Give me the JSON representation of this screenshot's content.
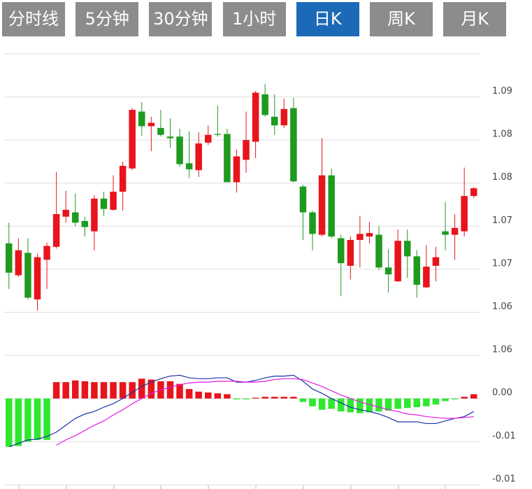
{
  "tabs": [
    "分时线",
    "5分钟",
    "30分钟",
    "1小时",
    "日K",
    "周K",
    "月K"
  ],
  "active_tab": 4,
  "chart_data": [
    {
      "type": "candlestick",
      "open": [
        1.0705,
        1.0668,
        1.0694,
        1.064,
        1.0686,
        1.0701,
        1.0736,
        1.0741,
        1.0731,
        1.0719,
        1.0757,
        1.0744,
        1.0765,
        1.0792,
        1.0858,
        1.0841,
        1.0839,
        1.0829,
        1.0829,
        1.0798,
        1.079,
        1.0822,
        1.0832,
        1.0832,
        1.0776,
        1.0802,
        1.0823,
        1.0878,
        1.0852,
        1.0842,
        1.0862,
        1.0771,
        1.0741,
        1.0715,
        1.0784,
        1.0711,
        1.0679,
        1.0709,
        1.0713,
        1.0715,
        1.0677,
        1.0661,
        1.0708,
        1.069,
        1.0654,
        1.0679,
        1.0719,
        1.0715,
        1.0719,
        1.076
      ],
      "high": [
        1.0729,
        1.0711,
        1.0711,
        1.0693,
        1.0706,
        1.0788,
        1.0766,
        1.0763,
        1.0736,
        1.0761,
        1.0765,
        1.0784,
        1.08,
        1.0862,
        1.0869,
        1.0852,
        1.086,
        1.085,
        1.0838,
        1.0835,
        1.0834,
        1.0842,
        1.0865,
        1.0838,
        1.0814,
        1.0858,
        1.0882,
        1.089,
        1.0878,
        1.0873,
        1.0874,
        1.0773,
        1.0743,
        1.0827,
        1.0792,
        1.0715,
        1.0713,
        1.0737,
        1.073,
        1.0725,
        1.0698,
        1.0721,
        1.0721,
        1.0697,
        1.0703,
        1.0701,
        1.0753,
        1.0739,
        1.0793,
        1.077
      ],
      "low": [
        1.0652,
        1.0666,
        1.064,
        1.0627,
        1.0652,
        1.0699,
        1.0729,
        1.0725,
        1.0713,
        1.0697,
        1.0737,
        1.0743,
        1.0743,
        1.079,
        1.083,
        1.0812,
        1.0829,
        1.0816,
        1.0794,
        1.0781,
        1.0782,
        1.0819,
        1.0829,
        1.0776,
        1.0764,
        1.0787,
        1.0804,
        1.0852,
        1.0831,
        1.0839,
        1.0776,
        1.0709,
        1.0697,
        1.0713,
        1.0711,
        1.0644,
        1.0663,
        1.0677,
        1.0705,
        1.0674,
        1.0648,
        1.066,
        1.0665,
        1.0642,
        1.0653,
        1.0661,
        1.0697,
        1.0686,
        1.0713,
        1.0758
      ],
      "close": [
        1.0671,
        1.0697,
        1.0642,
        1.0689,
        1.0702,
        1.0739,
        1.0744,
        1.0729,
        1.0724,
        1.0757,
        1.0745,
        1.0765,
        1.0795,
        1.086,
        1.0841,
        1.0845,
        1.0831,
        1.0827,
        1.0797,
        1.0791,
        1.0821,
        1.0831,
        1.0831,
        1.0776,
        1.0806,
        1.0825,
        1.088,
        1.0854,
        1.0842,
        1.0861,
        1.0777,
        1.0741,
        1.0716,
        1.0784,
        1.0713,
        1.0682,
        1.0709,
        1.0716,
        1.0717,
        1.0677,
        1.0669,
        1.0708,
        1.069,
        1.0657,
        1.0678,
        1.0689,
        1.0715,
        1.0723,
        1.076,
        1.0769
      ],
      "up_color": "#e8141b",
      "down_color": "#1f9a1f",
      "ylim": [
        1.0575,
        1.0925
      ],
      "yticks": [
        {
          "value": 1.0875,
          "label": "1.09"
        },
        {
          "value": 1.0825,
          "label": "1.08"
        },
        {
          "value": 1.0775,
          "label": "1.08"
        },
        {
          "value": 1.0725,
          "label": "1.07"
        },
        {
          "value": 1.0675,
          "label": "1.07"
        },
        {
          "value": 1.0625,
          "label": "1.06"
        },
        {
          "value": 1.0575,
          "label": "1.06"
        }
      ],
      "grid": true
    },
    {
      "type": "macd",
      "values": [
        -0.0056,
        -0.0055,
        -0.005,
        -0.0048,
        -0.0048,
        0.0019,
        0.0019,
        0.0021,
        0.002,
        0.0019,
        0.0019,
        0.0019,
        0.0019,
        0.0019,
        0.0023,
        0.0022,
        0.002,
        0.002,
        0.0017,
        0.0011,
        0.0008,
        0.0007,
        0.0006,
        0.0005,
        -0.0001,
        -0.0001,
        0.0001,
        0.0002,
        0.0002,
        0.0002,
        0.0002,
        -0.0004,
        -0.0009,
        -0.0013,
        -0.0012,
        -0.0015,
        -0.0016,
        -0.0017,
        -0.0016,
        -0.0015,
        -0.0014,
        -0.0012,
        -0.0011,
        -0.001,
        -0.0009,
        -0.0007,
        -0.0003,
        -0.0001,
        0.0002,
        0.0005
      ],
      "up_color": "#e8141b",
      "down_color": "#2ee82e",
      "lines": [
        {
          "color": "#1c33a8",
          "values": [
            -0.0056,
            -0.0052,
            -0.0048,
            -0.0047,
            -0.0044,
            -0.0039,
            -0.0031,
            -0.0023,
            -0.0018,
            -0.0015,
            -0.001,
            -0.0006,
            0.0,
            0.0007,
            0.0014,
            0.0019,
            0.0023,
            0.0026,
            0.0027,
            0.0024,
            0.0023,
            0.0023,
            0.0024,
            0.0024,
            0.0019,
            0.0019,
            0.0021,
            0.0024,
            0.0026,
            0.0026,
            0.0027,
            0.002,
            0.0011,
            0.0006,
            0.0,
            -0.0005,
            -0.001,
            -0.0013,
            -0.0015,
            -0.0018,
            -0.0022,
            -0.0027,
            -0.0027,
            -0.0027,
            -0.0029,
            -0.0029,
            -0.0026,
            -0.0023,
            -0.0021,
            -0.0015
          ]
        },
        {
          "color": "#e619e6",
          "values": [
            null,
            null,
            null,
            null,
            null,
            -0.0054,
            -0.0048,
            -0.0043,
            -0.0037,
            -0.0031,
            -0.0026,
            -0.0019,
            -0.0013,
            -0.0006,
            0.0,
            0.0006,
            0.001,
            0.0013,
            0.0016,
            0.0018,
            0.0019,
            0.0019,
            0.002,
            0.002,
            0.002,
            0.0019,
            0.0019,
            0.002,
            0.0022,
            0.0023,
            0.0023,
            0.0022,
            0.0018,
            0.0014,
            0.0009,
            0.0004,
            0.0,
            -0.0004,
            -0.0007,
            -0.001,
            -0.0013,
            -0.0015,
            -0.0018,
            -0.0019,
            -0.0021,
            -0.0022,
            -0.0023,
            -0.0023,
            -0.0022,
            -0.0021
          ]
        }
      ],
      "ylim": [
        -0.01,
        0.005
      ],
      "yticks": [
        {
          "value": 0,
          "label": "0.00"
        },
        {
          "value": -0.005,
          "label": "-0.01"
        },
        {
          "value": -0.01,
          "label": "-0.01"
        }
      ],
      "grid": true
    }
  ]
}
